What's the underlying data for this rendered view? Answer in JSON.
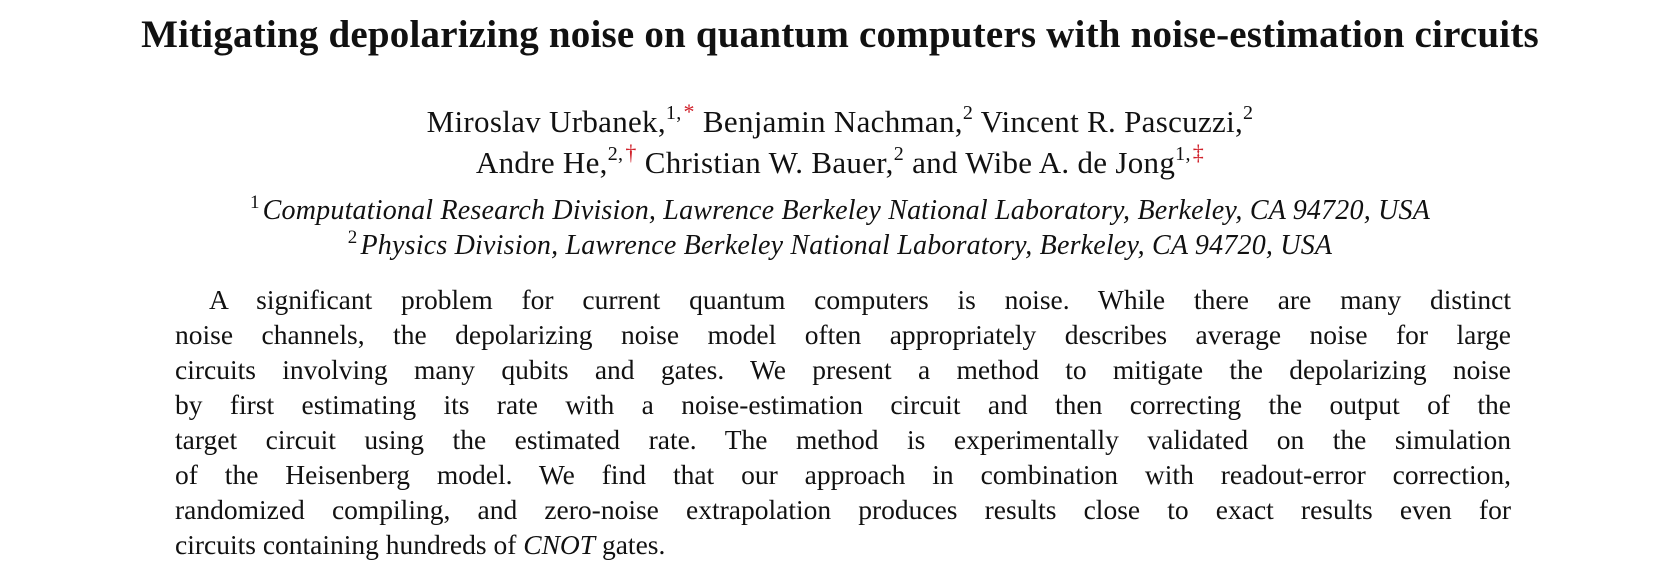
{
  "paper": {
    "title": "Mitigating depolarizing noise on quantum computers with noise-estimation circuits",
    "authors_line1": [
      {
        "name": "Miroslav Urbanek,",
        "affil": "1",
        "mark": "*"
      },
      {
        "name": "Benjamin Nachman,",
        "affil": "2",
        "mark": ""
      },
      {
        "name": "Vincent R. Pascuzzi,",
        "affil": "2",
        "mark": ""
      }
    ],
    "authors_line2": [
      {
        "name": "Andre He,",
        "affil": "2",
        "mark": "†"
      },
      {
        "name": "Christian W. Bauer,",
        "affil": "2",
        "mark": ""
      },
      {
        "name": "and Wibe A. de Jong",
        "affil": "1",
        "mark": "‡"
      }
    ],
    "affiliations": [
      {
        "num": "1",
        "text": "Computational Research Division, Lawrence Berkeley National Laboratory, Berkeley, CA 94720, USA"
      },
      {
        "num": "2",
        "text": "Physics Division, Lawrence Berkeley National Laboratory, Berkeley, CA 94720, USA"
      }
    ],
    "abstract_lines": [
      "A significant problem for current quantum computers is noise. While there are many distinct",
      "noise channels, the depolarizing noise model often appropriately describes average noise for large",
      "circuits involving many qubits and gates. We present a method to mitigate the depolarizing noise",
      "by first estimating its rate with a noise-estimation circuit and then correcting the output of the",
      "target circuit using the estimated rate. The method is experimentally validated on the simulation",
      "of the Heisenberg model. We find that our approach in combination with readout-error correction,",
      "randomized compiling, and zero-noise extrapolation produces results close to exact results even for"
    ],
    "abstract_last": {
      "before": "circuits containing hundreds of",
      "math": "CNOT",
      "after": "gates."
    }
  },
  "colors": {
    "text": "#111111",
    "footnote_mark": "#d0202a"
  }
}
